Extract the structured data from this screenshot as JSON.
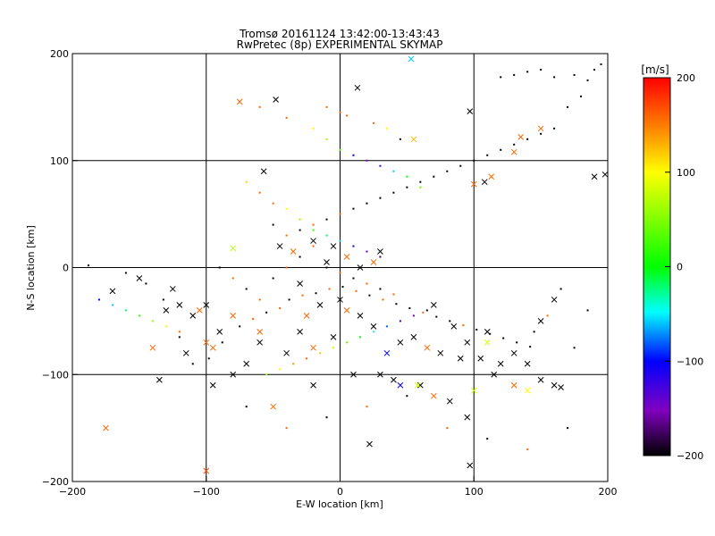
{
  "chart_data": {
    "type": "scatter",
    "title_line1": "Tromsø 20161124 13:42:00-13:43:43",
    "title_line2": "RwPretec (8p) EXPERIMENTAL SKYMAP",
    "xlabel": "E-W location [km]",
    "ylabel": "N-S location [km]",
    "xlim": [
      -200,
      200
    ],
    "ylim": [
      -200,
      200
    ],
    "xticks": [
      -200,
      -100,
      0,
      100,
      200
    ],
    "yticks": [
      -200,
      -100,
      0,
      100,
      200
    ],
    "grid": true,
    "colorbar": {
      "label": "[m/s]",
      "range": [
        -200,
        200
      ],
      "ticks": [
        200,
        100,
        0,
        -100,
        -200
      ],
      "colormap": "black-purple-blue-cyan-green-yellow-red"
    },
    "series": [
      {
        "marker": "x",
        "points": [
          [
            -175,
            -150,
            160
          ],
          [
            -100,
            -190,
            170
          ],
          [
            -48,
            157,
            -200
          ],
          [
            13,
            168,
            -200
          ],
          [
            97,
            146,
            -200
          ],
          [
            -57,
            90,
            -200
          ],
          [
            -150,
            -10,
            -200
          ],
          [
            -170,
            -22,
            -200
          ],
          [
            -135,
            -105,
            -200
          ],
          [
            -115,
            -80,
            -200
          ],
          [
            -95,
            -110,
            -200
          ],
          [
            -90,
            -60,
            -200
          ],
          [
            -80,
            -100,
            -200
          ],
          [
            -50,
            -130,
            160
          ],
          [
            -20,
            -75,
            160
          ],
          [
            -5,
            -65,
            -200
          ],
          [
            10,
            -100,
            -200
          ],
          [
            22,
            -165,
            -200
          ],
          [
            40,
            -105,
            -200
          ],
          [
            60,
            -110,
            -200
          ],
          [
            82,
            -125,
            -200
          ],
          [
            95,
            -140,
            -200
          ],
          [
            97,
            -185,
            -200
          ],
          [
            150,
            -105,
            -200
          ],
          [
            160,
            -110,
            -200
          ],
          [
            165,
            -112,
            -200
          ],
          [
            150,
            -50,
            -200
          ],
          [
            160,
            -30,
            -200
          ],
          [
            190,
            85,
            -200
          ],
          [
            198,
            87,
            -200
          ],
          [
            130,
            108,
            160
          ],
          [
            135,
            122,
            160
          ],
          [
            150,
            130,
            160
          ],
          [
            113,
            85,
            160
          ],
          [
            108,
            80,
            -200
          ],
          [
            100,
            78,
            160
          ],
          [
            70,
            -35,
            -200
          ],
          [
            85,
            -55,
            -200
          ],
          [
            95,
            -70,
            -200
          ],
          [
            105,
            -85,
            -200
          ],
          [
            120,
            -90,
            -200
          ],
          [
            140,
            -90,
            -200
          ],
          [
            30,
            -100,
            -200
          ],
          [
            -40,
            -80,
            -200
          ],
          [
            -60,
            -70,
            -200
          ],
          [
            -60,
            -60,
            160
          ],
          [
            -120,
            -35,
            -200
          ],
          [
            -130,
            -40,
            -200
          ],
          [
            -105,
            -40,
            160
          ],
          [
            -100,
            -70,
            160
          ],
          [
            -110,
            -45,
            -200
          ],
          [
            -125,
            -20,
            -200
          ],
          [
            -140,
            -75,
            160
          ],
          [
            -95,
            -75,
            160
          ],
          [
            -30,
            -60,
            -200
          ],
          [
            -25,
            -45,
            160
          ],
          [
            -15,
            -35,
            -200
          ],
          [
            0,
            -30,
            -200
          ],
          [
            5,
            -40,
            160
          ],
          [
            15,
            -45,
            -200
          ],
          [
            25,
            -55,
            -200
          ],
          [
            45,
            -70,
            -200
          ],
          [
            55,
            -65,
            -200
          ],
          [
            65,
            -75,
            160
          ],
          [
            75,
            -80,
            -200
          ],
          [
            90,
            -85,
            -200
          ],
          [
            110,
            -60,
            -200
          ],
          [
            130,
            -80,
            -200
          ],
          [
            -45,
            20,
            -200
          ],
          [
            -35,
            15,
            160
          ],
          [
            -20,
            25,
            -200
          ],
          [
            -10,
            5,
            -200
          ],
          [
            5,
            10,
            160
          ],
          [
            15,
            0,
            -200
          ],
          [
            30,
            15,
            -200
          ],
          [
            25,
            5,
            160
          ],
          [
            -5,
            20,
            -200
          ],
          [
            -30,
            -15,
            -200
          ],
          [
            -75,
            155,
            160
          ],
          [
            55,
            120,
            125
          ],
          [
            53,
            195,
            -60
          ],
          [
            -80,
            18,
            70
          ],
          [
            58,
            -110,
            80
          ],
          [
            45,
            -110,
            -100
          ],
          [
            100,
            -115,
            80
          ],
          [
            130,
            -110,
            160
          ],
          [
            140,
            -115,
            100
          ],
          [
            110,
            -70,
            80
          ],
          [
            35,
            -80,
            -100
          ],
          [
            -100,
            -35,
            -200
          ],
          [
            -80,
            -45,
            160
          ],
          [
            -70,
            -90,
            -200
          ],
          [
            -20,
            -110,
            -200
          ],
          [
            70,
            -120,
            160
          ],
          [
            115,
            -100,
            -200
          ]
        ]
      },
      {
        "marker": "dot",
        "points": [
          [
            -188,
            2,
            -200
          ],
          [
            -160,
            -5,
            -200
          ],
          [
            -145,
            -15,
            -200
          ],
          [
            -132,
            -30,
            -200
          ],
          [
            -120,
            -65,
            -200
          ],
          [
            -110,
            -90,
            -200
          ],
          [
            -98,
            -85,
            -200
          ],
          [
            -88,
            -70,
            -200
          ],
          [
            -75,
            -55,
            -200
          ],
          [
            -65,
            -48,
            160
          ],
          [
            -55,
            -42,
            -200
          ],
          [
            -45,
            -38,
            160
          ],
          [
            -38,
            -30,
            -200
          ],
          [
            -28,
            -26,
            160
          ],
          [
            -18,
            -24,
            -200
          ],
          [
            -8,
            -20,
            160
          ],
          [
            2,
            -18,
            -200
          ],
          [
            12,
            -22,
            160
          ],
          [
            22,
            -26,
            -200
          ],
          [
            32,
            -30,
            160
          ],
          [
            42,
            -34,
            -200
          ],
          [
            52,
            -38,
            -200
          ],
          [
            62,
            -42,
            160
          ],
          [
            72,
            -46,
            -200
          ],
          [
            82,
            -50,
            -200
          ],
          [
            92,
            -54,
            160
          ],
          [
            102,
            -58,
            -200
          ],
          [
            112,
            -62,
            -200
          ],
          [
            122,
            -66,
            -200
          ],
          [
            132,
            -70,
            -200
          ],
          [
            142,
            -74,
            -200
          ],
          [
            -50,
            40,
            -200
          ],
          [
            -40,
            30,
            160
          ],
          [
            -30,
            35,
            -200
          ],
          [
            -20,
            40,
            160
          ],
          [
            -10,
            45,
            -200
          ],
          [
            0,
            50,
            160
          ],
          [
            10,
            55,
            -200
          ],
          [
            20,
            60,
            -200
          ],
          [
            30,
            65,
            -200
          ],
          [
            40,
            70,
            -200
          ],
          [
            50,
            75,
            -200
          ],
          [
            60,
            80,
            -200
          ],
          [
            70,
            85,
            -200
          ],
          [
            80,
            90,
            -200
          ],
          [
            90,
            95,
            -200
          ],
          [
            100,
            100,
            -200
          ],
          [
            110,
            105,
            -200
          ],
          [
            120,
            110,
            -200
          ],
          [
            130,
            115,
            -200
          ],
          [
            140,
            120,
            -200
          ],
          [
            150,
            125,
            -200
          ],
          [
            160,
            130,
            -200
          ],
          [
            170,
            150,
            -200
          ],
          [
            180,
            160,
            -200
          ],
          [
            185,
            175,
            -200
          ],
          [
            190,
            185,
            -200
          ],
          [
            195,
            190,
            -200
          ],
          [
            175,
            180,
            -200
          ],
          [
            160,
            178,
            -200
          ],
          [
            150,
            185,
            -200
          ],
          [
            140,
            183,
            -200
          ],
          [
            130,
            180,
            -200
          ],
          [
            120,
            178,
            -200
          ],
          [
            -10,
            150,
            160
          ],
          [
            0,
            145,
            160
          ],
          [
            5,
            142,
            160
          ],
          [
            25,
            135,
            160
          ],
          [
            35,
            130,
            100
          ],
          [
            45,
            120,
            -200
          ],
          [
            -60,
            150,
            160
          ],
          [
            -40,
            140,
            160
          ],
          [
            -20,
            130,
            100
          ],
          [
            -10,
            120,
            60
          ],
          [
            0,
            110,
            30
          ],
          [
            10,
            105,
            -100
          ],
          [
            20,
            100,
            -150
          ],
          [
            30,
            95,
            -130
          ],
          [
            40,
            90,
            -60
          ],
          [
            50,
            85,
            0
          ],
          [
            60,
            75,
            40
          ],
          [
            -70,
            80,
            120
          ],
          [
            -60,
            70,
            160
          ],
          [
            -50,
            60,
            160
          ],
          [
            -40,
            55,
            100
          ],
          [
            -30,
            45,
            60
          ],
          [
            -20,
            35,
            20
          ],
          [
            -10,
            30,
            -20
          ],
          [
            0,
            25,
            -60
          ],
          [
            10,
            20,
            -100
          ],
          [
            20,
            15,
            -140
          ],
          [
            30,
            10,
            -180
          ],
          [
            -55,
            -100,
            60
          ],
          [
            -45,
            -95,
            100
          ],
          [
            -35,
            -90,
            140
          ],
          [
            -25,
            -85,
            160
          ],
          [
            -15,
            -80,
            120
          ],
          [
            -5,
            -75,
            80
          ],
          [
            5,
            -70,
            40
          ],
          [
            15,
            -65,
            0
          ],
          [
            25,
            -60,
            -40
          ],
          [
            35,
            -55,
            -80
          ],
          [
            45,
            -50,
            -120
          ],
          [
            55,
            -45,
            -160
          ],
          [
            65,
            -40,
            -200
          ],
          [
            -120,
            -60,
            160
          ],
          [
            -130,
            -55,
            100
          ],
          [
            -140,
            -50,
            60
          ],
          [
            -150,
            -45,
            20
          ],
          [
            -160,
            -40,
            -20
          ],
          [
            -170,
            -35,
            -60
          ],
          [
            -180,
            -30,
            -100
          ],
          [
            -90,
            0,
            -200
          ],
          [
            -80,
            -10,
            160
          ],
          [
            -70,
            -20,
            -200
          ],
          [
            -60,
            -30,
            160
          ],
          [
            -50,
            -10,
            -200
          ],
          [
            -40,
            0,
            160
          ],
          [
            -30,
            10,
            -200
          ],
          [
            -20,
            20,
            160
          ],
          [
            -10,
            0,
            -200
          ],
          [
            0,
            -5,
            160
          ],
          [
            10,
            -10,
            -200
          ],
          [
            20,
            -15,
            160
          ],
          [
            30,
            -20,
            -200
          ],
          [
            40,
            -25,
            160
          ],
          [
            -70,
            -130,
            -200
          ],
          [
            -40,
            -150,
            160
          ],
          [
            -10,
            -140,
            -200
          ],
          [
            20,
            -130,
            160
          ],
          [
            50,
            -120,
            -200
          ],
          [
            80,
            -150,
            160
          ],
          [
            110,
            -160,
            -200
          ],
          [
            140,
            -170,
            160
          ],
          [
            170,
            -150,
            -200
          ],
          [
            175,
            -75,
            -200
          ],
          [
            185,
            -40,
            -200
          ],
          [
            165,
            -20,
            -200
          ],
          [
            155,
            -45,
            160
          ],
          [
            145,
            -60,
            -200
          ]
        ]
      }
    ]
  }
}
